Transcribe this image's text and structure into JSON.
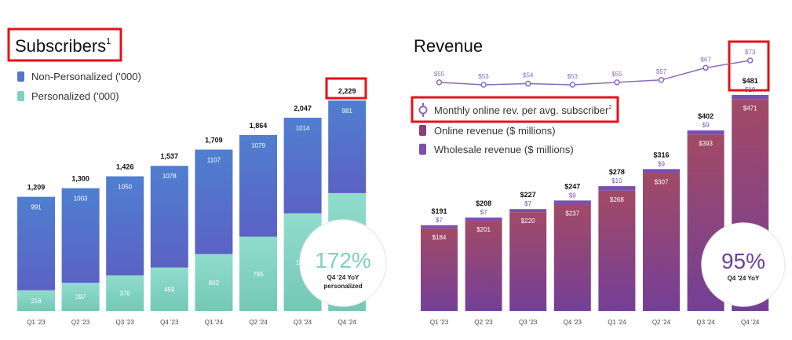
{
  "colors": {
    "nonpersonalized": "#5577c8",
    "personalized": "#7fd1c0",
    "online": "#8a3f78",
    "wholesale": "#7b4fb0",
    "monthly_line": "#8a6bb8",
    "highlight_box": "#e3121a"
  },
  "chart_data": [
    {
      "type": "bar",
      "title": "Subscribers",
      "title_superscript": "1",
      "stacked": true,
      "categories": [
        "Q1 '23",
        "Q2 '23",
        "Q3 '23",
        "Q4 '23",
        "Q1 '24",
        "Q2 '24",
        "Q3 '24",
        "Q4 '24"
      ],
      "series": [
        {
          "name": "Personalized ('000)",
          "values": [
            218,
            297,
            376,
            459,
            602,
            785,
            1033,
            1248
          ]
        },
        {
          "name": "Non-Personalized ('000)",
          "values": [
            991,
            1003,
            1050,
            1078,
            1107,
            1079,
            1014,
            981
          ]
        }
      ],
      "totals": [
        "1,209",
        "1,300",
        "1,426",
        "1,537",
        "1,709",
        "1,864",
        "2,047",
        "2,229"
      ],
      "legend_position": "top-left",
      "grid": false,
      "callout": {
        "value": "172%",
        "label_line1": "Q4 '24 YoY",
        "label_line2": "personalized"
      }
    },
    {
      "type": "bar",
      "title": "Revenue",
      "stacked": true,
      "categories": [
        "Q1 '23",
        "Q2 '23",
        "Q3 '23",
        "Q4 '23",
        "Q1 '24",
        "Q2 '24",
        "Q3 '24",
        "Q4 '24"
      ],
      "series": [
        {
          "name": "Online revenue ($ millions)",
          "values": [
            184,
            201,
            220,
            237,
            268,
            307,
            393,
            471
          ],
          "labels": [
            "$184",
            "$201",
            "$220",
            "$237",
            "$268",
            "$307",
            "$393",
            "$471"
          ]
        },
        {
          "name": "Wholesale revenue ($ millions)",
          "values": [
            7,
            7,
            7,
            9,
            10,
            9,
            9,
            10
          ],
          "labels": [
            "$7",
            "$7",
            "$7",
            "$9",
            "$10",
            "$9",
            "$9",
            "$10"
          ]
        }
      ],
      "totals": [
        "$191",
        "$208",
        "$227",
        "$247",
        "$278",
        "$316",
        "$402",
        "$481"
      ],
      "line_series": {
        "name": "Monthly online rev. per avg. subscriber",
        "name_superscript": "2",
        "values": [
          55,
          53,
          54,
          53,
          55,
          57,
          67,
          73
        ],
        "labels": [
          "$55",
          "$53",
          "$54",
          "$53",
          "$55",
          "$57",
          "$67",
          "$73"
        ]
      },
      "legend_position": "top-left",
      "grid": false,
      "callout": {
        "value": "95%",
        "label_line1": "Q4 '24 YoY"
      }
    }
  ]
}
